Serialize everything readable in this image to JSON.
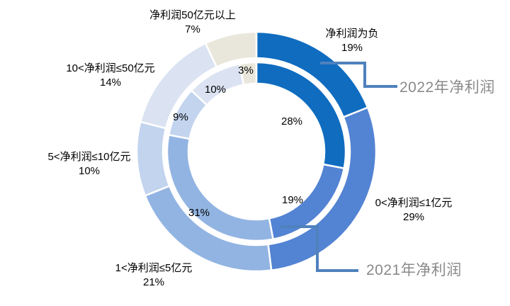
{
  "chart": {
    "background": "#FFFFFF",
    "callout_color": "#4F81BD",
    "series_label_color": "#8A8A8A",
    "separator_color": "#FFFFFF"
  },
  "chart_data": {
    "type": "pie",
    "subtype": "double-ring-donut",
    "title": "",
    "categories": [
      "净利润为负",
      "0<净利润≤1亿元",
      "1<净利润≤5亿元",
      "5<净利润≤10亿元",
      "10<净利润≤50亿元",
      "净利润50亿元以上"
    ],
    "colors": [
      "#0F6CBF",
      "#5383D3",
      "#92B4E2",
      "#C2D4EE",
      "#DBE3F2",
      "#E9E7DC"
    ],
    "unit": "%",
    "start_angle_deg": 0,
    "direction": "clockwise",
    "legend_position": "callout-labels",
    "series": [
      {
        "name": "2022年净利润",
        "ring": "outer",
        "values": [
          19,
          29,
          21,
          10,
          14,
          7
        ],
        "labels": [
          "19%",
          "29%",
          "21%",
          "10%",
          "14%",
          "7%"
        ]
      },
      {
        "name": "2021年净利润",
        "ring": "inner",
        "values": [
          28,
          19,
          31,
          9,
          10,
          3
        ],
        "labels": [
          "28%",
          "19%",
          "31%",
          "9%",
          "10%",
          "3%"
        ]
      }
    ]
  }
}
